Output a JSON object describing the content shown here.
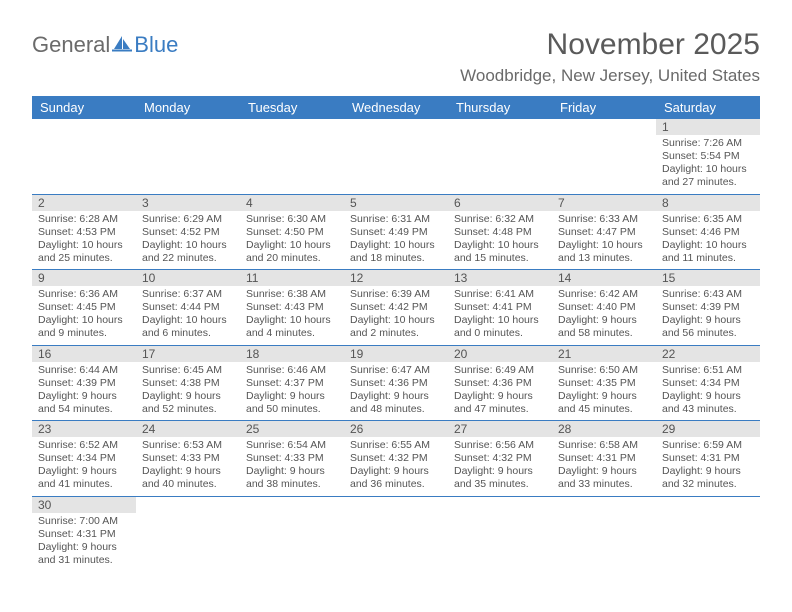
{
  "logo": {
    "text1": "General",
    "text2": "Blue"
  },
  "title": "November 2025",
  "location": "Woodbridge, New Jersey, United States",
  "header_bg": "#3a7cc2",
  "daynum_bg": "#e4e4e4",
  "days_of_week": [
    "Sunday",
    "Monday",
    "Tuesday",
    "Wednesday",
    "Thursday",
    "Friday",
    "Saturday"
  ],
  "weeks": [
    [
      null,
      null,
      null,
      null,
      null,
      null,
      {
        "n": "1",
        "sunrise": "7:26 AM",
        "sunset": "5:54 PM",
        "daylight": "10 hours and 27 minutes."
      }
    ],
    [
      {
        "n": "2",
        "sunrise": "6:28 AM",
        "sunset": "4:53 PM",
        "daylight": "10 hours and 25 minutes."
      },
      {
        "n": "3",
        "sunrise": "6:29 AM",
        "sunset": "4:52 PM",
        "daylight": "10 hours and 22 minutes."
      },
      {
        "n": "4",
        "sunrise": "6:30 AM",
        "sunset": "4:50 PM",
        "daylight": "10 hours and 20 minutes."
      },
      {
        "n": "5",
        "sunrise": "6:31 AM",
        "sunset": "4:49 PM",
        "daylight": "10 hours and 18 minutes."
      },
      {
        "n": "6",
        "sunrise": "6:32 AM",
        "sunset": "4:48 PM",
        "daylight": "10 hours and 15 minutes."
      },
      {
        "n": "7",
        "sunrise": "6:33 AM",
        "sunset": "4:47 PM",
        "daylight": "10 hours and 13 minutes."
      },
      {
        "n": "8",
        "sunrise": "6:35 AM",
        "sunset": "4:46 PM",
        "daylight": "10 hours and 11 minutes."
      }
    ],
    [
      {
        "n": "9",
        "sunrise": "6:36 AM",
        "sunset": "4:45 PM",
        "daylight": "10 hours and 9 minutes."
      },
      {
        "n": "10",
        "sunrise": "6:37 AM",
        "sunset": "4:44 PM",
        "daylight": "10 hours and 6 minutes."
      },
      {
        "n": "11",
        "sunrise": "6:38 AM",
        "sunset": "4:43 PM",
        "daylight": "10 hours and 4 minutes."
      },
      {
        "n": "12",
        "sunrise": "6:39 AM",
        "sunset": "4:42 PM",
        "daylight": "10 hours and 2 minutes."
      },
      {
        "n": "13",
        "sunrise": "6:41 AM",
        "sunset": "4:41 PM",
        "daylight": "10 hours and 0 minutes."
      },
      {
        "n": "14",
        "sunrise": "6:42 AM",
        "sunset": "4:40 PM",
        "daylight": "9 hours and 58 minutes."
      },
      {
        "n": "15",
        "sunrise": "6:43 AM",
        "sunset": "4:39 PM",
        "daylight": "9 hours and 56 minutes."
      }
    ],
    [
      {
        "n": "16",
        "sunrise": "6:44 AM",
        "sunset": "4:39 PM",
        "daylight": "9 hours and 54 minutes."
      },
      {
        "n": "17",
        "sunrise": "6:45 AM",
        "sunset": "4:38 PM",
        "daylight": "9 hours and 52 minutes."
      },
      {
        "n": "18",
        "sunrise": "6:46 AM",
        "sunset": "4:37 PM",
        "daylight": "9 hours and 50 minutes."
      },
      {
        "n": "19",
        "sunrise": "6:47 AM",
        "sunset": "4:36 PM",
        "daylight": "9 hours and 48 minutes."
      },
      {
        "n": "20",
        "sunrise": "6:49 AM",
        "sunset": "4:36 PM",
        "daylight": "9 hours and 47 minutes."
      },
      {
        "n": "21",
        "sunrise": "6:50 AM",
        "sunset": "4:35 PM",
        "daylight": "9 hours and 45 minutes."
      },
      {
        "n": "22",
        "sunrise": "6:51 AM",
        "sunset": "4:34 PM",
        "daylight": "9 hours and 43 minutes."
      }
    ],
    [
      {
        "n": "23",
        "sunrise": "6:52 AM",
        "sunset": "4:34 PM",
        "daylight": "9 hours and 41 minutes."
      },
      {
        "n": "24",
        "sunrise": "6:53 AM",
        "sunset": "4:33 PM",
        "daylight": "9 hours and 40 minutes."
      },
      {
        "n": "25",
        "sunrise": "6:54 AM",
        "sunset": "4:33 PM",
        "daylight": "9 hours and 38 minutes."
      },
      {
        "n": "26",
        "sunrise": "6:55 AM",
        "sunset": "4:32 PM",
        "daylight": "9 hours and 36 minutes."
      },
      {
        "n": "27",
        "sunrise": "6:56 AM",
        "sunset": "4:32 PM",
        "daylight": "9 hours and 35 minutes."
      },
      {
        "n": "28",
        "sunrise": "6:58 AM",
        "sunset": "4:31 PM",
        "daylight": "9 hours and 33 minutes."
      },
      {
        "n": "29",
        "sunrise": "6:59 AM",
        "sunset": "4:31 PM",
        "daylight": "9 hours and 32 minutes."
      }
    ],
    [
      {
        "n": "30",
        "sunrise": "7:00 AM",
        "sunset": "4:31 PM",
        "daylight": "9 hours and 31 minutes."
      },
      null,
      null,
      null,
      null,
      null,
      null
    ]
  ],
  "labels": {
    "sunrise": "Sunrise:",
    "sunset": "Sunset:",
    "daylight": "Daylight:"
  }
}
